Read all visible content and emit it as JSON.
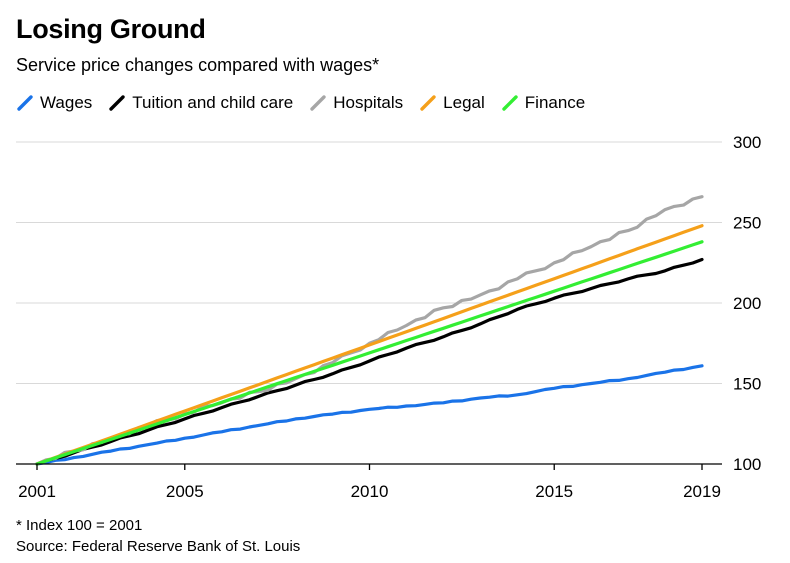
{
  "header": {
    "title": "Losing Ground",
    "subtitle": "Service price changes compared with wages*"
  },
  "footer": {
    "footnote": "* Index 100 = 2001",
    "source": "Source: Federal Reserve Bank of St. Louis"
  },
  "chart_data": {
    "type": "line",
    "title": "Losing Ground",
    "subtitle": "Service price changes compared with wages*",
    "xlabel": "",
    "ylabel": "",
    "xlim": [
      2001,
      2019
    ],
    "ylim": [
      100,
      300
    ],
    "x_ticks": [
      2001,
      2005,
      2010,
      2015,
      2019
    ],
    "x_tick_labels": [
      "2001",
      "2005",
      "2010",
      "2015",
      "2019"
    ],
    "y_ticks": [
      100,
      150,
      200,
      250,
      300
    ],
    "y_tick_labels": [
      "100",
      "150",
      "200",
      "250",
      "300"
    ],
    "y_axis_side": "right",
    "grid": "horizontal",
    "legend_position": "top",
    "x": [
      2001,
      2002,
      2003,
      2004,
      2005,
      2006,
      2007,
      2008,
      2009,
      2010,
      2011,
      2012,
      2013,
      2014,
      2015,
      2016,
      2017,
      2018,
      2019
    ],
    "series": [
      {
        "name": "Wages",
        "color": "#1a73e8",
        "values": [
          100,
          104,
          108,
          112,
          116,
          120,
          124,
          128,
          131,
          134,
          136,
          138,
          141,
          143,
          147,
          150,
          153,
          157,
          161
        ]
      },
      {
        "name": "Tuition and child care",
        "color": "#000000",
        "values": [
          100,
          107,
          114,
          121,
          128,
          135,
          142,
          149,
          156,
          164,
          172,
          179,
          187,
          196,
          203,
          209,
          215,
          220,
          227
        ]
      },
      {
        "name": "Hospitals",
        "color": "#a6a6a6",
        "values": [
          100,
          108,
          116,
          124,
          131,
          138,
          145,
          153,
          163,
          175,
          186,
          197,
          205,
          215,
          225,
          235,
          245,
          258,
          266
        ]
      },
      {
        "name": "Legal",
        "color": "#f5a01a",
        "values": [
          100,
          108.2,
          116.4,
          124.7,
          132.9,
          141.1,
          149.3,
          157.6,
          165.8,
          174,
          182.2,
          190.4,
          198.7,
          206.9,
          215.1,
          223.3,
          231.6,
          239.8,
          248
        ]
      },
      {
        "name": "Finance",
        "color": "#33ee33",
        "values": [
          100,
          107.7,
          115.3,
          123,
          130.7,
          138.3,
          146,
          153.7,
          161.3,
          169,
          176.7,
          184.3,
          192,
          199.7,
          207.3,
          215,
          222.7,
          230.3,
          238
        ]
      }
    ]
  }
}
